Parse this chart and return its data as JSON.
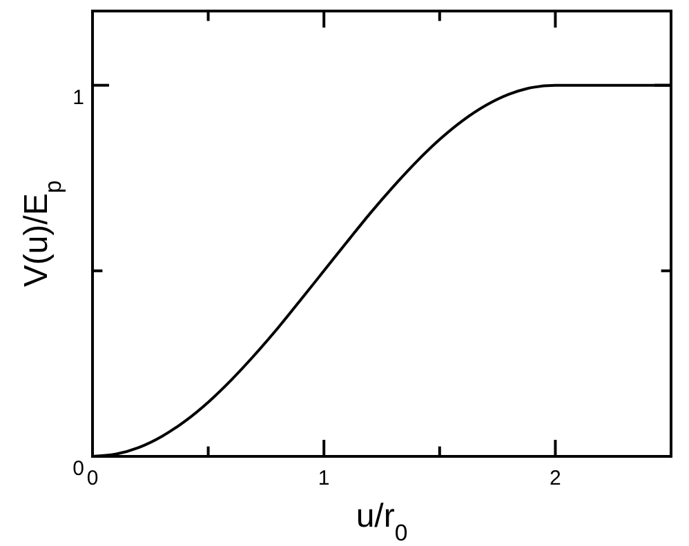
{
  "chart_data": {
    "type": "line",
    "xlabel": "u/r$_{0}$",
    "ylabel": "V(u)/E$_{p}$",
    "x": [
      0,
      0.1,
      0.2,
      0.3,
      0.4,
      0.5,
      0.6,
      0.7,
      0.8,
      0.9,
      1,
      1.1,
      1.2,
      1.3,
      1.4,
      1.5,
      1.6,
      1.7,
      1.8,
      1.9,
      2,
      2.5
    ],
    "series": [
      {
        "color": "#000000",
        "values": [
          0,
          0.006,
          0.024,
          0.054,
          0.095,
          0.146,
          0.206,
          0.273,
          0.345,
          0.422,
          0.5,
          0.578,
          0.655,
          0.727,
          0.794,
          0.854,
          0.905,
          0.946,
          0.976,
          0.994,
          1,
          1
        ]
      }
    ],
    "xlim": [
      0,
      2.5
    ],
    "ylim": [
      0,
      1.2
    ],
    "xticks": [
      0,
      {
        "value": 0.5,
        "label": null
      },
      1,
      {
        "value": 1.5,
        "label": null
      },
      2
    ],
    "yticks": [
      0,
      {
        "value": 0.5,
        "label": null
      },
      1
    ],
    "grid": false,
    "marker": "none",
    "line_style": "solid"
  }
}
